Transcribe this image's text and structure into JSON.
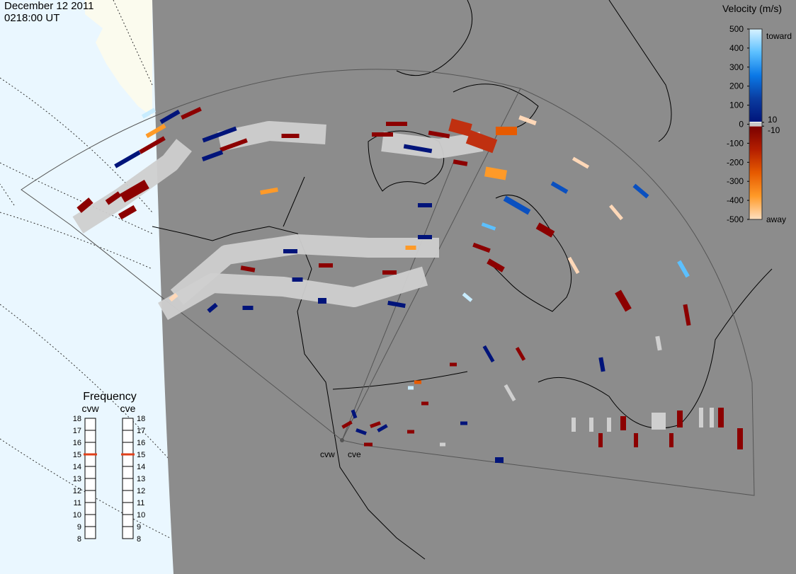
{
  "header": {
    "date": "December 12 2011",
    "time": "0218:00 UT"
  },
  "velocity_scale": {
    "title": "Velocity (m/s)",
    "ylim": [
      -500,
      500
    ],
    "yticks": [
      500,
      400,
      300,
      200,
      100,
      0,
      -100,
      -200,
      -300,
      -400,
      -500
    ],
    "inner_ticks": [
      10,
      -10
    ],
    "top_label": "toward",
    "bottom_label": "away",
    "toward_colors": [
      "#d8f2ff",
      "#5cc0ff",
      "#0a78e6",
      "#0a3ca0",
      "#00147a"
    ],
    "zero_color": "#c8c8c8",
    "away_colors": [
      "#7a0000",
      "#b41e00",
      "#e65a00",
      "#ff9a28",
      "#ffe0c0"
    ]
  },
  "frequency": {
    "title": "Frequency",
    "ylim": [
      8,
      18
    ],
    "ticks": [
      8,
      9,
      10,
      11,
      12,
      13,
      14,
      15,
      16,
      17,
      18
    ],
    "radars": [
      {
        "name": "cvw",
        "value": 15
      },
      {
        "name": "cve",
        "value": 15
      }
    ]
  },
  "sites": [
    "cvw",
    "cve"
  ]
}
